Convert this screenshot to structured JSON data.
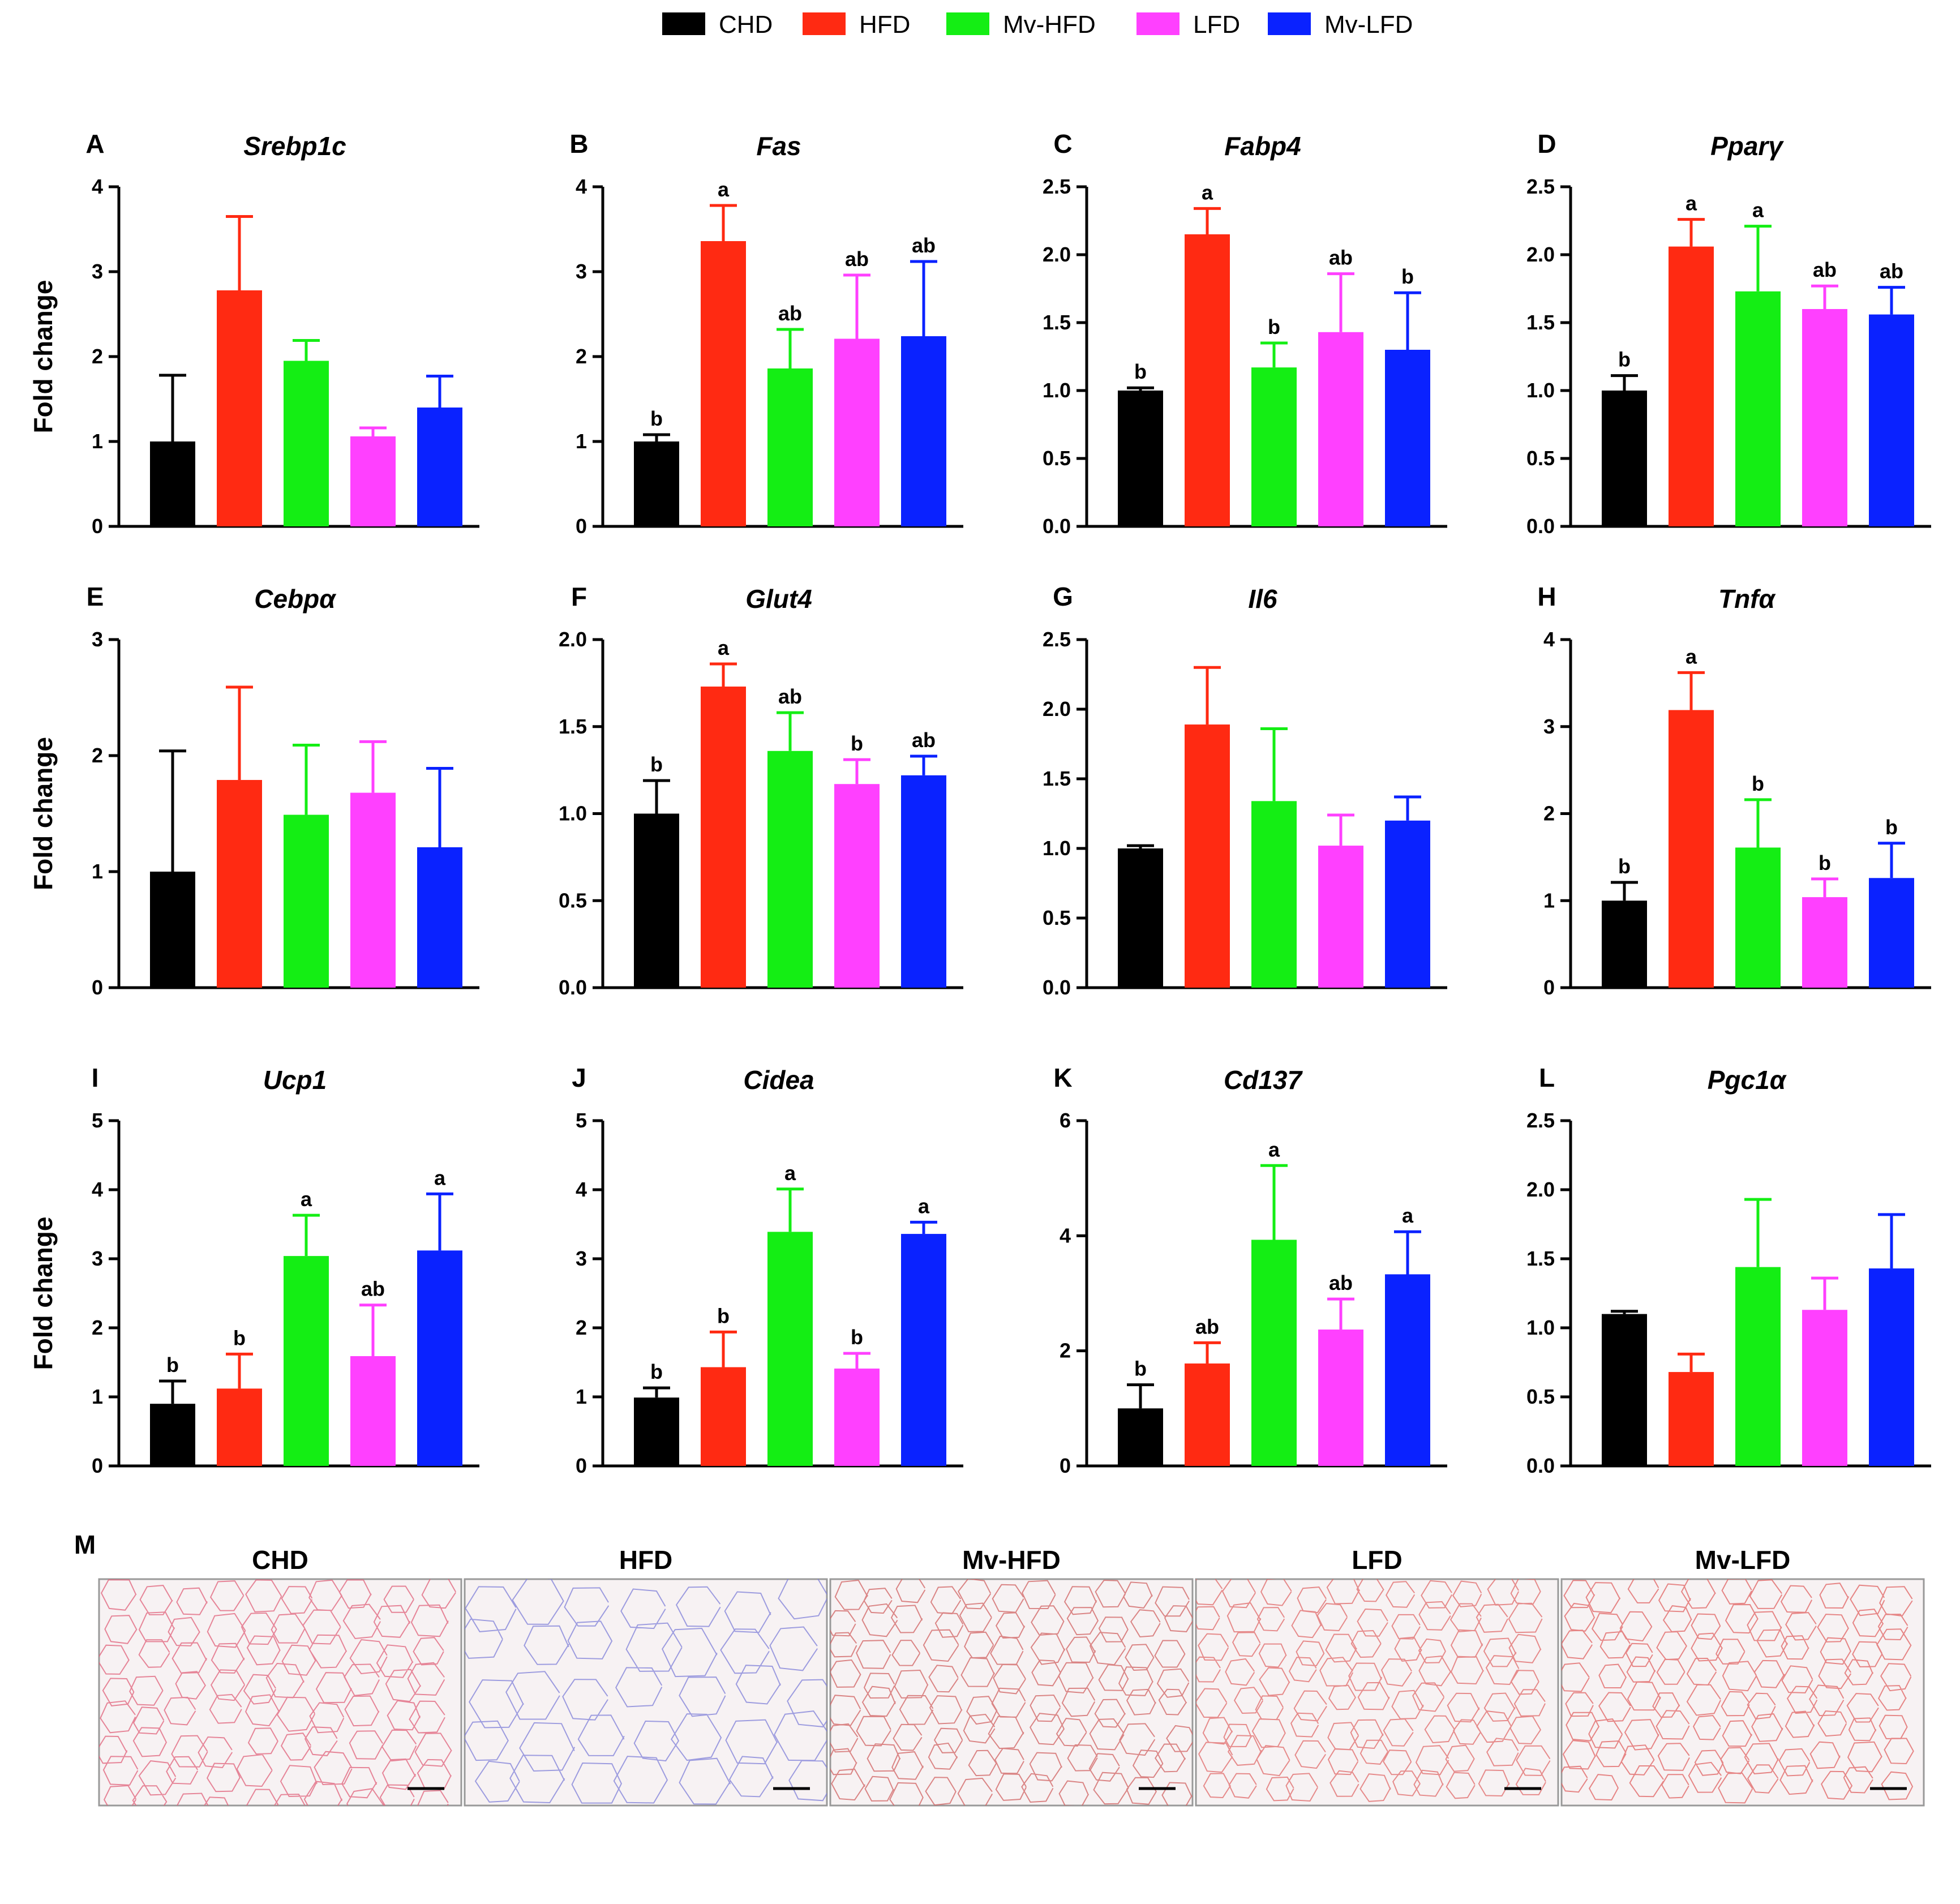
{
  "legend": [
    {
      "label": "CHD",
      "color": "#000000"
    },
    {
      "label": "HFD",
      "color": "#ff2a12"
    },
    {
      "label": "Mv-HFD",
      "color": "#14ee14"
    },
    {
      "label": "LFD",
      "color": "#ff40ff"
    },
    {
      "label": "Mv-LFD",
      "color": "#0a22ff"
    }
  ],
  "y_axis_label": "Fold change",
  "chart_data": [
    {
      "letter": "A",
      "title": "Srebp1c",
      "type": "bar",
      "ylim": [
        0,
        4
      ],
      "ticks": [
        "0",
        "1",
        "2",
        "3",
        "4"
      ],
      "categories": [
        "CHD",
        "HFD",
        "Mv-HFD",
        "LFD",
        "Mv-LFD"
      ],
      "values": [
        1.0,
        2.78,
        1.95,
        1.06,
        1.4
      ],
      "errors": [
        0.78,
        0.87,
        0.24,
        0.1,
        0.37
      ],
      "labels": [
        "",
        "",
        "",
        "",
        ""
      ]
    },
    {
      "letter": "B",
      "title": "Fas",
      "type": "bar",
      "ylim": [
        0,
        4
      ],
      "ticks": [
        "0",
        "1",
        "2",
        "3",
        "4"
      ],
      "categories": [
        "CHD",
        "HFD",
        "Mv-HFD",
        "LFD",
        "Mv-LFD"
      ],
      "values": [
        1.0,
        3.36,
        1.86,
        2.21,
        2.24
      ],
      "errors": [
        0.08,
        0.42,
        0.46,
        0.75,
        0.88
      ],
      "labels": [
        "b",
        "a",
        "ab",
        "ab",
        "ab"
      ]
    },
    {
      "letter": "C",
      "title": "Fabp4",
      "type": "bar",
      "ylim": [
        0,
        2.5
      ],
      "ticks": [
        "0.0",
        "0.5",
        "1.0",
        "1.5",
        "2.0",
        "2.5"
      ],
      "categories": [
        "CHD",
        "HFD",
        "Mv-HFD",
        "LFD",
        "Mv-LFD"
      ],
      "values": [
        1.0,
        2.15,
        1.17,
        1.43,
        1.3
      ],
      "errors": [
        0.02,
        0.19,
        0.18,
        0.43,
        0.42
      ],
      "labels": [
        "b",
        "a",
        "b",
        "ab",
        "b"
      ]
    },
    {
      "letter": "D",
      "title": "Pparγ",
      "type": "bar",
      "ylim": [
        0,
        2.5
      ],
      "ticks": [
        "0.0",
        "0.5",
        "1.0",
        "1.5",
        "2.0",
        "2.5"
      ],
      "categories": [
        "CHD",
        "HFD",
        "Mv-HFD",
        "LFD",
        "Mv-LFD"
      ],
      "values": [
        1.0,
        2.06,
        1.73,
        1.6,
        1.56
      ],
      "errors": [
        0.11,
        0.2,
        0.48,
        0.17,
        0.2
      ],
      "labels": [
        "b",
        "a",
        "a",
        "ab",
        "ab"
      ]
    },
    {
      "letter": "E",
      "title": "Cebpα",
      "type": "bar",
      "ylim": [
        0,
        3
      ],
      "ticks": [
        "0",
        "1",
        "2",
        "3"
      ],
      "categories": [
        "CHD",
        "HFD",
        "Mv-HFD",
        "LFD",
        "Mv-LFD"
      ],
      "values": [
        1.0,
        1.79,
        1.49,
        1.68,
        1.21
      ],
      "errors": [
        1.04,
        0.8,
        0.6,
        0.44,
        0.68
      ],
      "labels": [
        "",
        "",
        "",
        "",
        ""
      ]
    },
    {
      "letter": "F",
      "title": "Glut4",
      "type": "bar",
      "ylim": [
        0,
        2
      ],
      "ticks": [
        "0.0",
        "0.5",
        "1.0",
        "1.5",
        "2.0"
      ],
      "categories": [
        "CHD",
        "HFD",
        "Mv-HFD",
        "LFD",
        "Mv-LFD"
      ],
      "values": [
        1.0,
        1.73,
        1.36,
        1.17,
        1.22
      ],
      "errors": [
        0.19,
        0.13,
        0.22,
        0.14,
        0.11
      ],
      "labels": [
        "b",
        "a",
        "ab",
        "b",
        "ab"
      ]
    },
    {
      "letter": "G",
      "title": "Il6",
      "type": "bar",
      "ylim": [
        0,
        2.5
      ],
      "ticks": [
        "0.0",
        "0.5",
        "1.0",
        "1.5",
        "2.0",
        "2.5"
      ],
      "categories": [
        "CHD",
        "HFD",
        "Mv-HFD",
        "LFD",
        "Mv-LFD"
      ],
      "values": [
        1.0,
        1.89,
        1.34,
        1.02,
        1.2
      ],
      "errors": [
        0.02,
        0.41,
        0.52,
        0.22,
        0.17
      ],
      "labels": [
        "",
        "",
        "",
        "",
        ""
      ]
    },
    {
      "letter": "H",
      "title": "Tnfα",
      "type": "bar",
      "ylim": [
        0,
        4
      ],
      "ticks": [
        "0",
        "1",
        "2",
        "3",
        "4"
      ],
      "categories": [
        "CHD",
        "HFD",
        "Mv-HFD",
        "LFD",
        "Mv-LFD"
      ],
      "values": [
        1.0,
        3.19,
        1.61,
        1.04,
        1.26
      ],
      "errors": [
        0.21,
        0.43,
        0.55,
        0.21,
        0.4
      ],
      "labels": [
        "b",
        "a",
        "b",
        "b",
        "b"
      ]
    },
    {
      "letter": "I",
      "title": "Ucp1",
      "type": "bar",
      "ylim": [
        0,
        5
      ],
      "ticks": [
        "0",
        "1",
        "2",
        "3",
        "4",
        "5"
      ],
      "categories": [
        "CHD",
        "HFD",
        "Mv-HFD",
        "LFD",
        "Mv-LFD"
      ],
      "values": [
        0.9,
        1.12,
        3.04,
        1.59,
        3.12
      ],
      "errors": [
        0.33,
        0.5,
        0.59,
        0.74,
        0.82
      ],
      "labels": [
        "b",
        "b",
        "a",
        "ab",
        "a"
      ]
    },
    {
      "letter": "J",
      "title": "Cidea",
      "type": "bar",
      "ylim": [
        0,
        5
      ],
      "ticks": [
        "0",
        "1",
        "2",
        "3",
        "4",
        "5"
      ],
      "categories": [
        "CHD",
        "HFD",
        "Mv-HFD",
        "LFD",
        "Mv-LFD"
      ],
      "values": [
        0.99,
        1.43,
        3.39,
        1.41,
        3.36
      ],
      "errors": [
        0.14,
        0.51,
        0.62,
        0.22,
        0.17
      ],
      "labels": [
        "b",
        "b",
        "a",
        "b",
        "a"
      ]
    },
    {
      "letter": "K",
      "title": "Cd137",
      "type": "bar",
      "ylim": [
        0,
        6
      ],
      "ticks": [
        "0",
        "2",
        "4",
        "6"
      ],
      "categories": [
        "CHD",
        "HFD",
        "Mv-HFD",
        "LFD",
        "Mv-LFD"
      ],
      "values": [
        1.0,
        1.78,
        3.93,
        2.37,
        3.33
      ],
      "errors": [
        0.41,
        0.36,
        1.29,
        0.53,
        0.74
      ],
      "labels": [
        "b",
        "ab",
        "a",
        "ab",
        "a"
      ]
    },
    {
      "letter": "L",
      "title": "Pgc1α",
      "type": "bar",
      "ylim": [
        0,
        2.5
      ],
      "ticks": [
        "0.0",
        "0.5",
        "1.0",
        "1.5",
        "2.0",
        "2.5"
      ],
      "categories": [
        "CHD",
        "HFD",
        "Mv-HFD",
        "LFD",
        "Mv-LFD"
      ],
      "values": [
        1.1,
        0.68,
        1.44,
        1.13,
        1.43
      ],
      "errors": [
        0.02,
        0.13,
        0.49,
        0.23,
        0.39
      ],
      "labels": [
        "",
        "",
        "",
        "",
        ""
      ]
    }
  ],
  "histology": {
    "letter": "M",
    "panels": [
      "CHD",
      "HFD",
      "Mv-HFD",
      "LFD",
      "Mv-LFD"
    ]
  }
}
